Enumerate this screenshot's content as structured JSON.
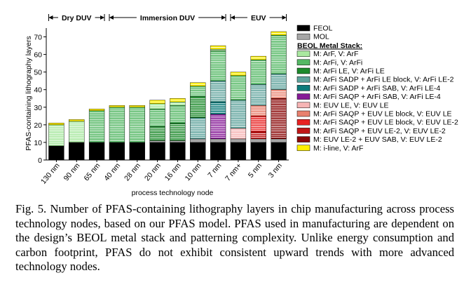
{
  "chart_data": {
    "type": "bar",
    "stacked": true,
    "ylabel": "PFAS-containing lithography layers",
    "xlabel": "process technology node",
    "categories": [
      "130 nm",
      "90 nm",
      "65 nm",
      "40 nm",
      "28 nm",
      "20 nm",
      "16 nm",
      "10 nm",
      "7 nm",
      "7 nm+",
      "5 nm",
      "3 nm"
    ],
    "ylim": [
      0,
      75
    ],
    "yticks": [
      0,
      10,
      20,
      30,
      40,
      50,
      60,
      70
    ],
    "legend_title": "BEOL Metal Stack:",
    "groups": [
      {
        "label": "Dry DUV",
        "from": "130 nm",
        "to": "65 nm"
      },
      {
        "label": "Immersion DUV",
        "from": "40 nm",
        "to": "7 nm"
      },
      {
        "label": "EUV",
        "from": "7 nm+",
        "to": "3 nm"
      }
    ],
    "series": [
      {
        "name": "FEOL",
        "color": "#000000",
        "values": [
          8,
          10,
          10,
          10,
          10,
          10,
          10,
          10,
          10,
          10,
          10,
          10
        ]
      },
      {
        "name": "MOL",
        "color": "#a6a6a6",
        "values": [
          0,
          0,
          0,
          0,
          0,
          1,
          1,
          2,
          2,
          2,
          2,
          2
        ]
      },
      {
        "name": "M: ArF, V: ArF",
        "color": "#a9e8a0",
        "values": [
          12,
          12,
          0,
          0,
          0,
          3,
          2,
          0,
          1,
          0,
          0,
          0
        ]
      },
      {
        "name": "M: ArFi, V: ArFi",
        "color": "#55b865",
        "values": [
          0,
          0,
          18,
          20,
          20,
          10,
          10,
          6,
          17,
          14,
          14,
          22
        ]
      },
      {
        "name": "M: ArFi LE, V: ArFi LE",
        "color": "#1e8a2c",
        "values": [
          0,
          0,
          0,
          0,
          0,
          8,
          10,
          12,
          0,
          0,
          0,
          0
        ]
      },
      {
        "name": "M: ArFi SADP + ArFi LE block, V: ArFi LE-2",
        "color": "#5fa39c",
        "values": [
          0,
          0,
          0,
          0,
          0,
          0,
          0,
          12,
          12,
          16,
          12,
          9
        ]
      },
      {
        "name": "M: ArFi SADP + ArFi SAB, V: ArFi LE-4",
        "color": "#0e7b7b",
        "values": [
          0,
          0,
          0,
          0,
          0,
          0,
          0,
          0,
          7,
          0,
          0,
          0
        ]
      },
      {
        "name": "M: ArFi SAQP + ArFi SAB, V: ArFi LE-4",
        "color": "#861a96",
        "values": [
          0,
          0,
          0,
          0,
          0,
          0,
          0,
          0,
          14,
          0,
          0,
          0
        ]
      },
      {
        "name": "M: EUV LE, V: EUV LE",
        "color": "#f6b4b4",
        "values": [
          0,
          0,
          0,
          0,
          0,
          0,
          0,
          0,
          0,
          6,
          0,
          0
        ]
      },
      {
        "name": "M: ArFi SAQP + EUV LE block, V: EUV LE",
        "color": "#e8806e",
        "values": [
          0,
          0,
          0,
          0,
          0,
          0,
          0,
          0,
          0,
          0,
          6,
          5
        ]
      },
      {
        "name": "M: ArFi SAQP + EUV LE block, V: EUV LE-2",
        "color": "#e82222",
        "values": [
          0,
          0,
          0,
          0,
          0,
          0,
          0,
          0,
          0,
          0,
          9,
          0
        ]
      },
      {
        "name": "M: ArFi SAQP + EUV LE-2, V: EUV LE-2",
        "color": "#c01616",
        "values": [
          0,
          0,
          0,
          0,
          0,
          0,
          0,
          0,
          0,
          0,
          4,
          0
        ]
      },
      {
        "name": "M: EUV LE-2 + EUV SAB, V: EUV LE-2",
        "color": "#8a0808",
        "values": [
          0,
          0,
          0,
          0,
          0,
          0,
          0,
          0,
          0,
          0,
          0,
          23
        ]
      },
      {
        "name": "M: i-line, V: ArF",
        "color": "#ffef00",
        "values": [
          1,
          1,
          1,
          1,
          1,
          2,
          2,
          2,
          2,
          2,
          2,
          2
        ]
      }
    ]
  },
  "caption": "Fig. 5. Number of PFAS-containing lithography layers in chip manufacturing across process technology nodes, based on our PFAS model. PFAS used in manufacturing are dependent on the design’s BEOL metal stack and patterning complexity. Unlike energy consumption and carbon footprint, PFAS do not exhibit consistent upward trends with more advanced technology nodes."
}
